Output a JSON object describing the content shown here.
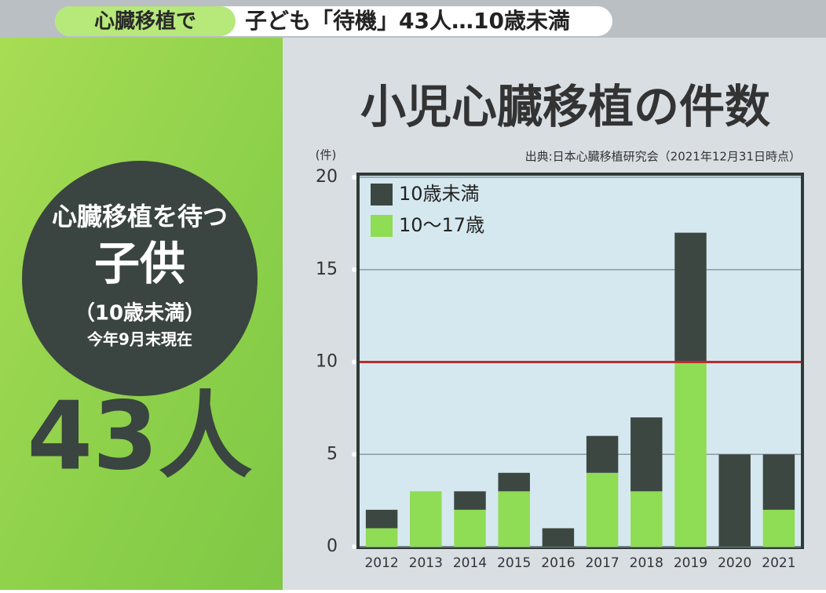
{
  "banner": {
    "tag": "心臓移植で",
    "headline": "子ども「待機」43人…10歳未満"
  },
  "panel": {
    "line1": "心臓移植を待つ",
    "line2": "子供",
    "line3": "（10歳未満）",
    "line4": "今年9月末現在",
    "count": "43人"
  },
  "chart_data": {
    "type": "stacked_bar",
    "title": "小児心臓移植の件数",
    "source": "出典:日本心臓移植研究会（2021年12月31日時点）",
    "y_label": "(件)",
    "categories": [
      "2012",
      "2013",
      "2014",
      "2015",
      "2016",
      "2017",
      "2018",
      "2019",
      "2020",
      "2021"
    ],
    "series": [
      {
        "name": "10歳未満",
        "color": "#3c4742",
        "values": [
          1,
          0,
          1,
          1,
          1,
          2,
          4,
          7,
          5,
          3
        ]
      },
      {
        "name": "10〜17歳",
        "color": "#8fdc55",
        "values": [
          1,
          3,
          2,
          3,
          0,
          4,
          3,
          10,
          0,
          2
        ]
      }
    ],
    "ylim": [
      0,
      20
    ],
    "yticks": [
      0,
      5,
      10,
      15,
      20
    ],
    "grid": true,
    "legend": "upper left",
    "reference_line": 10,
    "reference_color": "#c0282d"
  }
}
